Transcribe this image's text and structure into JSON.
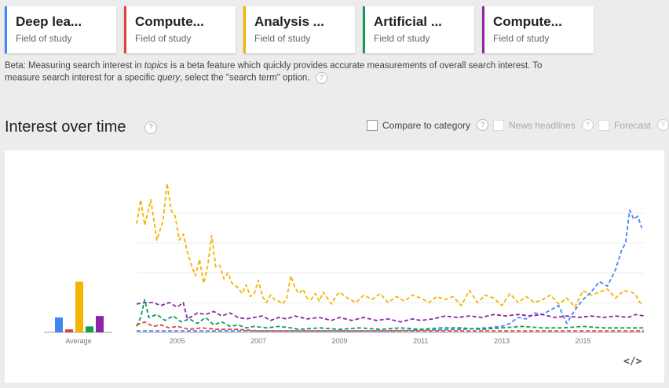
{
  "topics": [
    {
      "name": "Deep lea...",
      "type": "Field of study",
      "color": "#4285f4"
    },
    {
      "name": "Compute...",
      "type": "Field of study",
      "color": "#db4437"
    },
    {
      "name": "Analysis ...",
      "type": "Field of study",
      "color": "#f4b400"
    },
    {
      "name": "Artificial ...",
      "type": "Field of study",
      "color": "#0f9d58"
    },
    {
      "name": "Compute...",
      "type": "Field of study",
      "color": "#8e24aa"
    }
  ],
  "beta_note": {
    "part1": "Beta: Measuring search interest in ",
    "em1": "topics",
    "part2": " is a beta feature which quickly provides accurate measurements of overall search interest. To measure search interest for a specific ",
    "em2": "query",
    "part3": ", select the \"search term\" option.",
    "help": "?"
  },
  "section": {
    "title": "Interest over time",
    "help": "?"
  },
  "options": {
    "compare": {
      "label": "Compare to category",
      "help": "?",
      "checked": false,
      "enabled": true
    },
    "news": {
      "label": "News headlines",
      "help": "?",
      "checked": false,
      "enabled": false
    },
    "forecast": {
      "label": "Forecast",
      "help": "?",
      "checked": false,
      "enabled": false
    }
  },
  "embed_icon": "code-embed-icon",
  "embed_label": "</>",
  "chart_data": {
    "type": "line",
    "line_style": "dashed",
    "title": "",
    "xlabel": "",
    "ylabel": "",
    "x_start": 2004.0,
    "x_end": 2016.5,
    "x_ticks": [
      "2005",
      "2007",
      "2009",
      "2011",
      "2013",
      "2015"
    ],
    "ylim": [
      0,
      100
    ],
    "grid": true,
    "average": {
      "label": "Average",
      "values": [
        {
          "name": "Deep lea...",
          "value": 10,
          "color": "#4285f4"
        },
        {
          "name": "Compute...",
          "value": 2,
          "color": "#db4437"
        },
        {
          "name": "Analysis ...",
          "value": 34,
          "color": "#f4b400"
        },
        {
          "name": "Artificial ...",
          "value": 4,
          "color": "#0f9d58"
        },
        {
          "name": "Compute...",
          "value": 11,
          "color": "#8e24aa"
        }
      ]
    },
    "series": [
      {
        "color": "#f4b400",
        "points": [
          [
            2004.0,
            73
          ],
          [
            2004.1,
            89
          ],
          [
            2004.2,
            72
          ],
          [
            2004.35,
            89
          ],
          [
            2004.5,
            62
          ],
          [
            2004.65,
            75
          ],
          [
            2004.75,
            100
          ],
          [
            2004.85,
            82
          ],
          [
            2004.95,
            78
          ],
          [
            2005.05,
            62
          ],
          [
            2005.15,
            66
          ],
          [
            2005.25,
            54
          ],
          [
            2005.35,
            45
          ],
          [
            2005.45,
            38
          ],
          [
            2005.55,
            49
          ],
          [
            2005.65,
            33
          ],
          [
            2005.75,
            44
          ],
          [
            2005.85,
            65
          ],
          [
            2005.95,
            44
          ],
          [
            2006.05,
            45
          ],
          [
            2006.15,
            36
          ],
          [
            2006.25,
            40
          ],
          [
            2006.35,
            33
          ],
          [
            2006.5,
            30
          ],
          [
            2006.6,
            26
          ],
          [
            2006.7,
            32
          ],
          [
            2006.8,
            24
          ],
          [
            2006.9,
            26
          ],
          [
            2007.0,
            35
          ],
          [
            2007.1,
            24
          ],
          [
            2007.2,
            20
          ],
          [
            2007.3,
            25
          ],
          [
            2007.4,
            22
          ],
          [
            2007.5,
            21
          ],
          [
            2007.6,
            19
          ],
          [
            2007.7,
            23
          ],
          [
            2007.8,
            38
          ],
          [
            2007.9,
            30
          ],
          [
            2008.0,
            26
          ],
          [
            2008.1,
            29
          ],
          [
            2008.2,
            23
          ],
          [
            2008.3,
            22
          ],
          [
            2008.4,
            26
          ],
          [
            2008.5,
            21
          ],
          [
            2008.6,
            27
          ],
          [
            2008.7,
            23
          ],
          [
            2008.8,
            19
          ],
          [
            2008.9,
            24
          ],
          [
            2009.0,
            27
          ],
          [
            2009.2,
            23
          ],
          [
            2009.4,
            20
          ],
          [
            2009.6,
            25
          ],
          [
            2009.8,
            22
          ],
          [
            2010.0,
            26
          ],
          [
            2010.2,
            20
          ],
          [
            2010.4,
            24
          ],
          [
            2010.6,
            21
          ],
          [
            2010.8,
            25
          ],
          [
            2011.0,
            23
          ],
          [
            2011.2,
            20
          ],
          [
            2011.4,
            24
          ],
          [
            2011.6,
            22
          ],
          [
            2011.8,
            24
          ],
          [
            2012.0,
            18
          ],
          [
            2012.2,
            28
          ],
          [
            2012.4,
            20
          ],
          [
            2012.6,
            25
          ],
          [
            2012.8,
            23
          ],
          [
            2013.0,
            18
          ],
          [
            2013.2,
            26
          ],
          [
            2013.4,
            20
          ],
          [
            2013.6,
            24
          ],
          [
            2013.8,
            20
          ],
          [
            2014.0,
            22
          ],
          [
            2014.2,
            25
          ],
          [
            2014.4,
            19
          ],
          [
            2014.6,
            23
          ],
          [
            2014.8,
            17
          ],
          [
            2015.0,
            28
          ],
          [
            2015.2,
            25
          ],
          [
            2015.4,
            27
          ],
          [
            2015.6,
            29
          ],
          [
            2015.8,
            23
          ],
          [
            2016.0,
            28
          ],
          [
            2016.2,
            27
          ],
          [
            2016.3,
            25
          ],
          [
            2016.4,
            20
          ],
          [
            2016.5,
            19
          ]
        ]
      },
      {
        "color": "#4285f4",
        "points": [
          [
            2004.0,
            1
          ],
          [
            2010.0,
            1
          ],
          [
            2012.0,
            2
          ],
          [
            2012.6,
            3
          ],
          [
            2013.0,
            4
          ],
          [
            2013.2,
            6
          ],
          [
            2013.4,
            10
          ],
          [
            2013.6,
            9
          ],
          [
            2013.8,
            13
          ],
          [
            2014.0,
            12
          ],
          [
            2014.2,
            15
          ],
          [
            2014.4,
            18
          ],
          [
            2014.6,
            6
          ],
          [
            2014.8,
            15
          ],
          [
            2015.0,
            22
          ],
          [
            2015.2,
            27
          ],
          [
            2015.4,
            34
          ],
          [
            2015.6,
            31
          ],
          [
            2015.8,
            42
          ],
          [
            2015.95,
            55
          ],
          [
            2016.05,
            60
          ],
          [
            2016.15,
            82
          ],
          [
            2016.25,
            76
          ],
          [
            2016.35,
            78
          ],
          [
            2016.45,
            70
          ]
        ]
      },
      {
        "color": "#8e24aa",
        "points": [
          [
            2004.0,
            19
          ],
          [
            2004.2,
            20
          ],
          [
            2004.4,
            20
          ],
          [
            2004.6,
            18
          ],
          [
            2004.8,
            20
          ],
          [
            2005.0,
            17
          ],
          [
            2005.15,
            20
          ],
          [
            2005.25,
            9
          ],
          [
            2005.5,
            13
          ],
          [
            2005.7,
            12
          ],
          [
            2005.9,
            14
          ],
          [
            2006.1,
            11
          ],
          [
            2006.3,
            13
          ],
          [
            2006.5,
            10
          ],
          [
            2006.7,
            9
          ],
          [
            2006.9,
            10
          ],
          [
            2007.1,
            11
          ],
          [
            2007.3,
            8
          ],
          [
            2007.5,
            10
          ],
          [
            2007.7,
            9
          ],
          [
            2007.9,
            11
          ],
          [
            2008.2,
            9
          ],
          [
            2008.5,
            10
          ],
          [
            2008.8,
            8
          ],
          [
            2009.0,
            10
          ],
          [
            2009.3,
            8
          ],
          [
            2009.6,
            10
          ],
          [
            2009.9,
            8
          ],
          [
            2010.2,
            9
          ],
          [
            2010.5,
            7
          ],
          [
            2010.8,
            9
          ],
          [
            2011.0,
            8
          ],
          [
            2011.3,
            9
          ],
          [
            2011.6,
            11
          ],
          [
            2011.9,
            10
          ],
          [
            2012.2,
            11
          ],
          [
            2012.5,
            10
          ],
          [
            2012.8,
            12
          ],
          [
            2013.1,
            11
          ],
          [
            2013.4,
            12
          ],
          [
            2013.7,
            11
          ],
          [
            2014.0,
            12
          ],
          [
            2014.3,
            10
          ],
          [
            2014.6,
            11
          ],
          [
            2014.9,
            10
          ],
          [
            2015.2,
            11
          ],
          [
            2015.5,
            10
          ],
          [
            2015.8,
            11
          ],
          [
            2016.1,
            10
          ],
          [
            2016.3,
            12
          ],
          [
            2016.5,
            11
          ]
        ]
      },
      {
        "color": "#0f9d58",
        "points": [
          [
            2004.0,
            4
          ],
          [
            2004.1,
            10
          ],
          [
            2004.2,
            22
          ],
          [
            2004.3,
            10
          ],
          [
            2004.5,
            12
          ],
          [
            2004.7,
            8
          ],
          [
            2004.9,
            11
          ],
          [
            2005.1,
            7
          ],
          [
            2005.3,
            9
          ],
          [
            2005.5,
            6
          ],
          [
            2005.7,
            10
          ],
          [
            2005.9,
            5
          ],
          [
            2006.1,
            7
          ],
          [
            2006.3,
            4
          ],
          [
            2006.5,
            5
          ],
          [
            2006.7,
            3
          ],
          [
            2006.9,
            4
          ],
          [
            2007.2,
            3
          ],
          [
            2007.5,
            4
          ],
          [
            2007.8,
            3
          ],
          [
            2008.0,
            2
          ],
          [
            2008.5,
            3
          ],
          [
            2009.0,
            2
          ],
          [
            2009.5,
            3
          ],
          [
            2010.0,
            2
          ],
          [
            2010.5,
            3
          ],
          [
            2011.0,
            2
          ],
          [
            2011.5,
            3
          ],
          [
            2012.0,
            3
          ],
          [
            2012.5,
            2
          ],
          [
            2013.0,
            3
          ],
          [
            2013.5,
            4
          ],
          [
            2014.0,
            3
          ],
          [
            2014.5,
            3
          ],
          [
            2015.0,
            4
          ],
          [
            2015.5,
            3
          ],
          [
            2016.0,
            3
          ],
          [
            2016.5,
            3
          ]
        ]
      },
      {
        "color": "#db4437",
        "points": [
          [
            2004.0,
            5
          ],
          [
            2004.2,
            7
          ],
          [
            2004.4,
            4
          ],
          [
            2004.6,
            5
          ],
          [
            2004.8,
            3
          ],
          [
            2005.0,
            4
          ],
          [
            2005.3,
            2
          ],
          [
            2005.6,
            3
          ],
          [
            2006.0,
            2
          ],
          [
            2006.5,
            2
          ],
          [
            2007.0,
            1
          ],
          [
            2008.0,
            1
          ],
          [
            2009.0,
            1
          ],
          [
            2010.0,
            1
          ],
          [
            2011.0,
            1
          ],
          [
            2012.0,
            1
          ],
          [
            2013.0,
            1
          ],
          [
            2014.0,
            1
          ],
          [
            2015.0,
            1
          ],
          [
            2016.0,
            1
          ],
          [
            2016.5,
            1
          ]
        ]
      }
    ]
  }
}
